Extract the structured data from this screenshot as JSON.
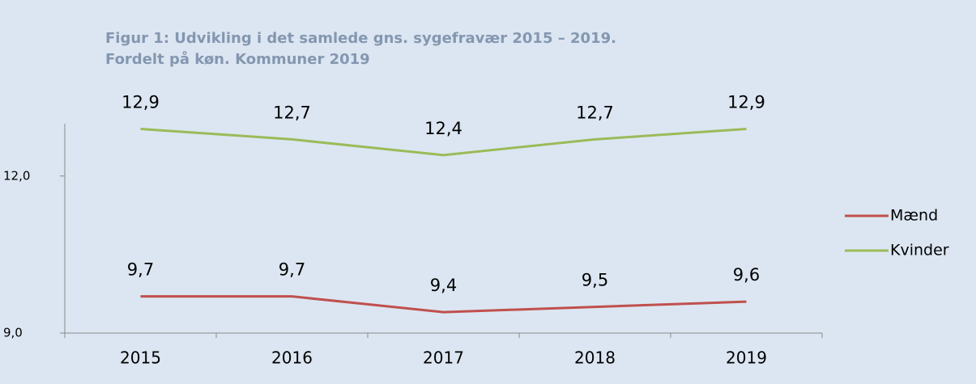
{
  "chart_data": {
    "type": "line",
    "title": [
      "Figur 1: Udvikling i det samlede  gns. sygefravær 2015 – 2019.",
      "Fordelt på køn. Kommuner 2019"
    ],
    "categories": [
      "2015",
      "2016",
      "2017",
      "2018",
      "2019"
    ],
    "series": [
      {
        "name": "Mænd",
        "color": "#c0504d",
        "values": [
          9.7,
          9.7,
          9.4,
          9.5,
          9.6
        ],
        "value_labels": [
          "9,7",
          "9,7",
          "9,4",
          "9,5",
          "9,6"
        ]
      },
      {
        "name": "Kvinder",
        "color": "#9bbb59",
        "values": [
          12.9,
          12.7,
          12.4,
          12.7,
          12.9
        ],
        "value_labels": [
          "12,9",
          "12,7",
          "12,4",
          "12,7",
          "12,9"
        ]
      }
    ],
    "ylim": [
      9,
      13
    ],
    "yticks": [
      {
        "value": 9,
        "label": "9,0"
      },
      {
        "value": 12,
        "label": "12,0"
      }
    ],
    "legend": "right"
  }
}
